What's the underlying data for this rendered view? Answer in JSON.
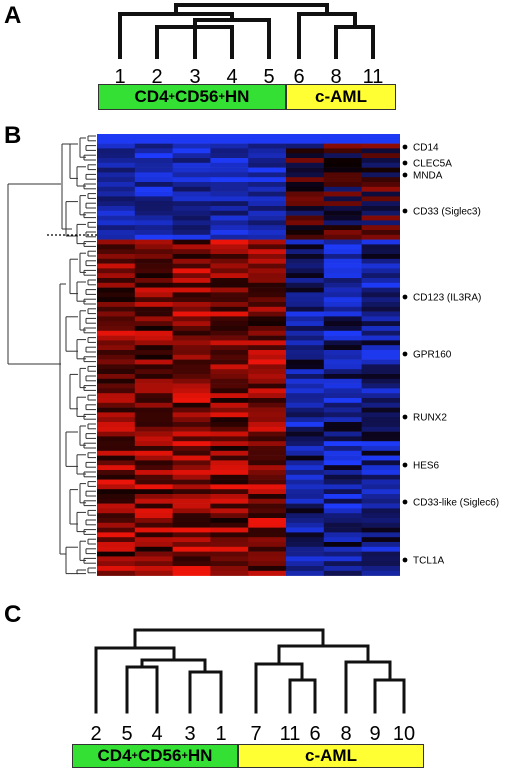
{
  "panels": {
    "a": {
      "label": "A",
      "leaves": [
        "1",
        "2",
        "3",
        "4",
        "5",
        "6",
        "8",
        "11"
      ],
      "groups": [
        {
          "parts": [
            {
              "t": "CD4"
            },
            {
              "t": "+",
              "sup": true
            },
            {
              "t": "CD56"
            },
            {
              "t": "+",
              "sup": true
            },
            {
              "t": " HN"
            }
          ],
          "color": "#33e033"
        },
        {
          "parts": [
            {
              "t": "c-AML"
            }
          ],
          "color": "#ffff33"
        }
      ]
    },
    "b": {
      "label": "B",
      "genes": [
        "CD14",
        "CLEC5A",
        "MNDA",
        "CD33 (Siglec3)",
        "CD123 (IL3RA)",
        "GPR160",
        "RUNX2",
        "HES6",
        "CD33-like (Siglec6)",
        "TCL1A"
      ]
    },
    "c": {
      "label": "C",
      "leaves": [
        "2",
        "5",
        "4",
        "3",
        "1",
        "7",
        "11",
        "6",
        "8",
        "9",
        "10"
      ],
      "groups": [
        {
          "parts": [
            {
              "t": "CD4"
            },
            {
              "t": "+",
              "sup": true
            },
            {
              "t": "CD56"
            },
            {
              "t": "+",
              "sup": true
            },
            {
              "t": "HN"
            }
          ],
          "color": "#33e033"
        },
        {
          "parts": [
            {
              "t": "c-AML"
            }
          ],
          "color": "#ffff33"
        }
      ]
    }
  },
  "colors": {
    "high": "#ff2010",
    "low": "#2040ff",
    "mid": "#000000"
  }
}
